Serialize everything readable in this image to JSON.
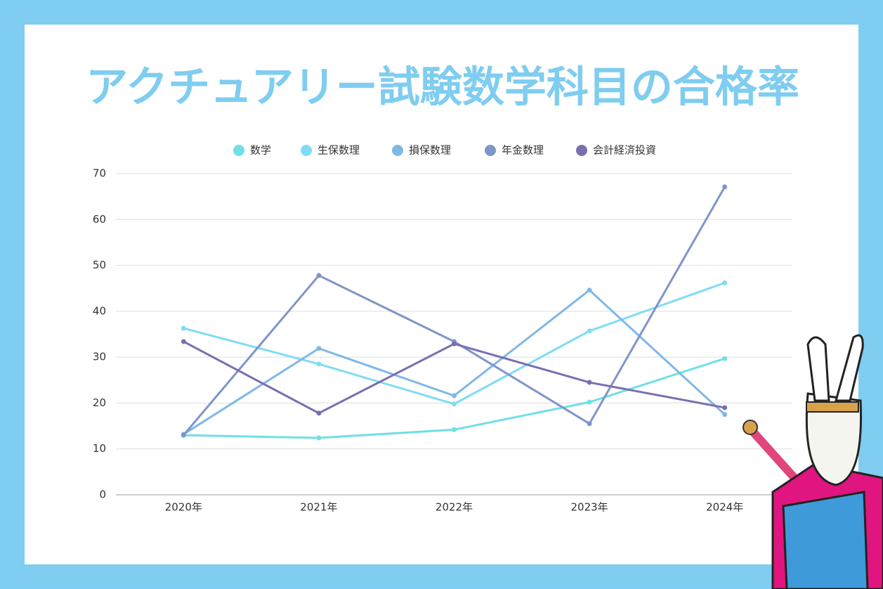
{
  "chart_data": {
    "type": "line",
    "title": "アクチュアリー試験数学科目の合格率",
    "categories": [
      "2020年",
      "2021年",
      "2022年",
      "2023年",
      "2024年"
    ],
    "series": [
      {
        "name": "数学",
        "color": "#6ee0e6",
        "values": [
          13.0,
          12.4,
          14.2,
          20.2,
          29.7
        ]
      },
      {
        "name": "生保数理",
        "color": "#7fdcf5",
        "values": [
          36.3,
          28.5,
          19.8,
          35.7,
          46.2
        ]
      },
      {
        "name": "損保数理",
        "color": "#7fb8e6",
        "values": [
          13.2,
          31.9,
          21.6,
          44.6,
          17.5
        ]
      },
      {
        "name": "年金数理",
        "color": "#7f95c8",
        "values": [
          13.0,
          47.8,
          33.4,
          15.5,
          67.1
        ]
      },
      {
        "name": "会計経済投資",
        "color": "#7a6fb0",
        "values": [
          33.4,
          17.8,
          32.9,
          24.5,
          19.0
        ]
      }
    ],
    "ylim": [
      0,
      70
    ],
    "yticks": [
      0,
      10,
      20,
      30,
      40,
      50,
      60,
      70
    ],
    "grid": true,
    "legend": "top"
  }
}
